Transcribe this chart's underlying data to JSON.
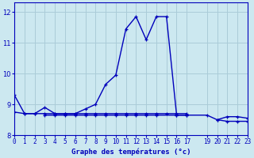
{
  "xlabel": "Graphe des températures (°c)",
  "background_color": "#cce8f0",
  "grid_color": "#aaccd8",
  "line_color": "#0000bb",
  "ylim": [
    8.0,
    12.3
  ],
  "xlim": [
    0,
    23
  ],
  "yticks": [
    8,
    9,
    10,
    11,
    12
  ],
  "xticks": [
    0,
    1,
    2,
    3,
    4,
    5,
    6,
    7,
    8,
    9,
    10,
    11,
    12,
    13,
    14,
    15,
    16,
    17,
    19,
    20,
    21,
    22,
    23
  ],
  "main_x": [
    0,
    1,
    2,
    3,
    4,
    5,
    6,
    7,
    8,
    9,
    10,
    11,
    12,
    13,
    14,
    15,
    16,
    17,
    20,
    21,
    22,
    23
  ],
  "main_y": [
    9.3,
    8.7,
    8.7,
    8.9,
    8.7,
    8.7,
    8.7,
    8.85,
    9.0,
    9.65,
    9.95,
    11.45,
    11.85,
    11.1,
    11.85,
    11.85,
    8.65,
    8.65,
    8.5,
    8.6,
    8.6,
    8.55
  ],
  "flat1_x": [
    0,
    1,
    2,
    3,
    4,
    5,
    6,
    7,
    8,
    9,
    10,
    11,
    12,
    13,
    14,
    15,
    16,
    17
  ],
  "flat1_y": [
    8.75,
    8.7,
    8.7,
    8.7,
    8.7,
    8.7,
    8.7,
    8.7,
    8.7,
    8.7,
    8.7,
    8.7,
    8.7,
    8.7,
    8.7,
    8.7,
    8.7,
    8.7
  ],
  "flat2_x": [
    3,
    4,
    5,
    6,
    7,
    8,
    9,
    10,
    11,
    12,
    13,
    14,
    16,
    17,
    19,
    20,
    21,
    22,
    23
  ],
  "flat2_y": [
    8.65,
    8.65,
    8.65,
    8.65,
    8.65,
    8.65,
    8.65,
    8.65,
    8.65,
    8.65,
    8.65,
    8.65,
    8.65,
    8.65,
    8.65,
    8.5,
    8.45,
    8.45,
    8.45
  ],
  "xlabel_fontsize": 6.5,
  "ylabel_fontsize": 6,
  "tick_fontsize": 5.5
}
